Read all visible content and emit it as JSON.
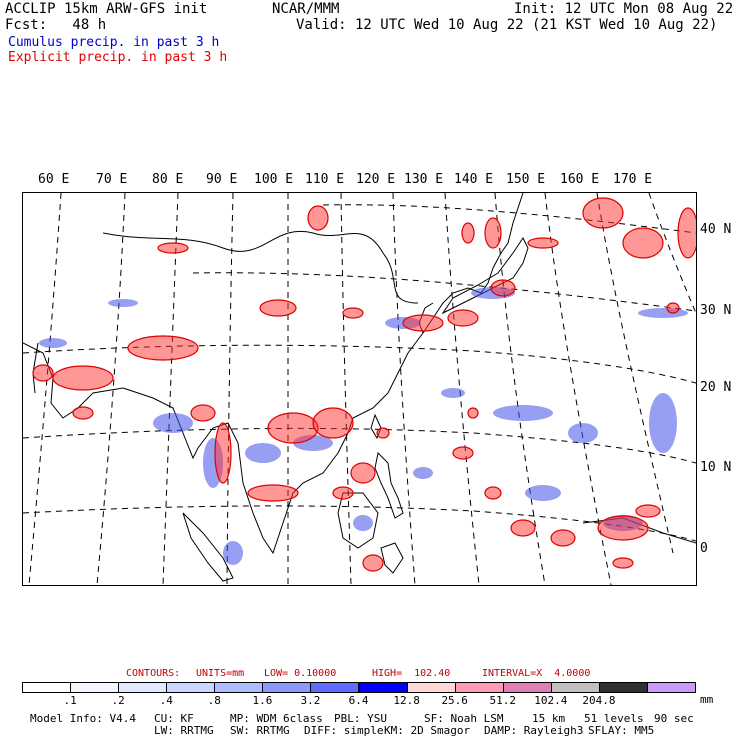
{
  "header": {
    "model_title": "ACCLIP 15km ARW-GFS init",
    "forecast": "Fcst:   48 h",
    "source": "NCAR/MMM",
    "init": "Init: 12 UTC Mon 08 Aug 22",
    "valid": "Valid: 12 UTC Wed 10 Aug 22 (21 KST Wed 10 Aug 22)",
    "legend_cumulus": "Cumulus precip. in past 3 h",
    "legend_explicit": "Explicit precip. in past 3 h"
  },
  "longitude_labels": [
    "60 E",
    "70 E",
    "80 E",
    "90 E",
    "100 E",
    "110 E",
    "120 E",
    "130 E",
    "140 E",
    "150 E",
    "160 E",
    "170 E"
  ],
  "latitude_labels": [
    "40 N",
    "30 N",
    "20 N",
    "10 N",
    "0"
  ],
  "contours": {
    "label": "CONTOURS:",
    "units": "UNITS=mm",
    "low": "LOW= 0.10000",
    "high": "HIGH=  102.40",
    "interval": "INTERVAL=X  4.0000"
  },
  "colorbar": {
    "colors": [
      "#ffffff",
      "#f2f6ff",
      "#e1e8ff",
      "#cad6ff",
      "#aebdff",
      "#8c9aff",
      "#5f6cff",
      "#0000ff",
      "#ffd7d7",
      "#ff9bb4",
      "#e07fb5",
      "#c0c0c0",
      "#303030",
      "#cc99ff"
    ],
    "ticks": [
      ".1",
      ".2",
      ".4",
      ".8",
      "1.6",
      "3.2",
      "6.4",
      "12.8",
      "25.6",
      "51.2",
      "102.4",
      "204.8"
    ],
    "unit": "mm"
  },
  "footer": {
    "line1": [
      "Model Info: V4.4",
      "CU: KF",
      "MP: WDM 6class",
      "PBL: YSU",
      "SF: Noah LSM",
      "15 km",
      "51 levels",
      "90 sec"
    ],
    "line2": [
      "LW: RRTMG",
      "SW: RRTMG",
      "DIFF: simple",
      "KM: 2D Smagor",
      "DAMP: Rayleigh3",
      "SFLAY: MM5"
    ]
  }
}
